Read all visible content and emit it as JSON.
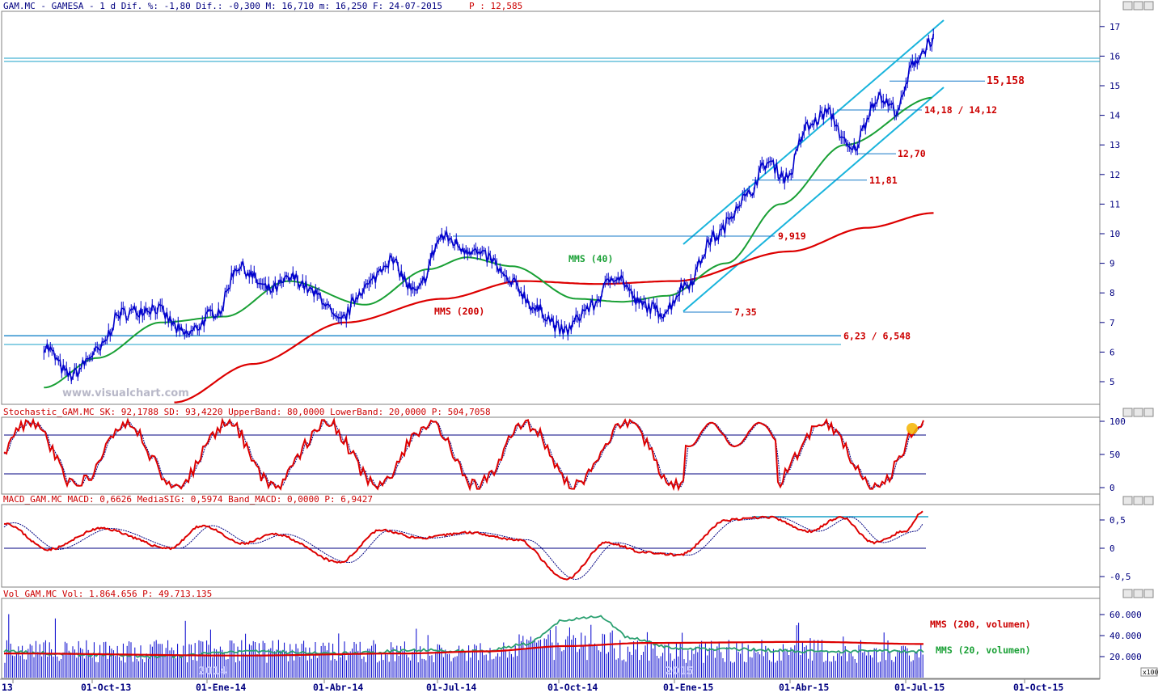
{
  "chart_data": {
    "type": "line",
    "title": "GAM.MC - GAMESA - 1 d Dif. %: -1,80 Dif.: -0,300 M: 16,710 m: 16,250 F: 24-07-2015",
    "header": {
      "text": "GAM.MC - GAMESA - 1 d Dif. %: -1,80 Dif.: -0,300 M: 16,710 m: 16,250 F: 24-07-2015",
      "p_label": "P : 12,585"
    },
    "price_panel": {
      "ylim": [
        4.3,
        17.5
      ],
      "yticks": [
        "17",
        "16",
        "15",
        "14",
        "13",
        "12",
        "11",
        "10",
        "9",
        "8",
        "7",
        "6",
        "5"
      ],
      "ytick_values": [
        17,
        16,
        15,
        14,
        13,
        12,
        11,
        10,
        9,
        8,
        7,
        6,
        5
      ],
      "close_series": [
        {
          "date": "2013-08-20",
          "value": 6.2
        },
        {
          "date": "2013-09-10",
          "value": 5.2
        },
        {
          "date": "2013-10-01",
          "value": 6.0
        },
        {
          "date": "2013-10-20",
          "value": 7.3
        },
        {
          "date": "2013-11-15",
          "value": 7.5
        },
        {
          "date": "2013-12-10",
          "value": 6.6
        },
        {
          "date": "2014-01-05",
          "value": 7.4
        },
        {
          "date": "2014-01-20",
          "value": 8.9
        },
        {
          "date": "2014-02-15",
          "value": 8.1
        },
        {
          "date": "2014-03-05",
          "value": 8.5
        },
        {
          "date": "2014-03-25",
          "value": 7.9
        },
        {
          "date": "2014-04-10",
          "value": 7.0
        },
        {
          "date": "2014-05-01",
          "value": 8.2
        },
        {
          "date": "2014-05-20",
          "value": 9.1
        },
        {
          "date": "2014-06-10",
          "value": 8.0
        },
        {
          "date": "2014-07-01",
          "value": 9.9
        },
        {
          "date": "2014-07-20",
          "value": 9.5
        },
        {
          "date": "2014-08-05",
          "value": 9.2
        },
        {
          "date": "2014-08-25",
          "value": 8.3
        },
        {
          "date": "2014-09-15",
          "value": 7.4
        },
        {
          "date": "2014-10-05",
          "value": 6.7
        },
        {
          "date": "2014-10-25",
          "value": 7.5
        },
        {
          "date": "2014-11-15",
          "value": 8.6
        },
        {
          "date": "2014-12-05",
          "value": 7.6
        },
        {
          "date": "2014-12-22",
          "value": 7.35
        },
        {
          "date": "2015-01-10",
          "value": 8.3
        },
        {
          "date": "2015-02-01",
          "value": 9.9
        },
        {
          "date": "2015-02-25",
          "value": 11.2
        },
        {
          "date": "2015-03-15",
          "value": 12.4
        },
        {
          "date": "2015-03-30",
          "value": 11.9
        },
        {
          "date": "2015-04-15",
          "value": 13.6
        },
        {
          "date": "2015-05-01",
          "value": 14.1
        },
        {
          "date": "2015-05-20",
          "value": 12.8
        },
        {
          "date": "2015-06-10",
          "value": 14.6
        },
        {
          "date": "2015-06-25",
          "value": 14.2
        },
        {
          "date": "2015-07-10",
          "value": 15.9
        },
        {
          "date": "2015-07-24",
          "value": 16.6
        }
      ],
      "mms40": [
        {
          "date": "2013-08-20",
          "value": 4.8
        },
        {
          "date": "2013-10-01",
          "value": 5.8
        },
        {
          "date": "2013-11-20",
          "value": 7.0
        },
        {
          "date": "2014-01-10",
          "value": 7.2
        },
        {
          "date": "2014-03-01",
          "value": 8.4
        },
        {
          "date": "2014-05-01",
          "value": 7.6
        },
        {
          "date": "2014-06-20",
          "value": 8.8
        },
        {
          "date": "2014-07-20",
          "value": 9.2
        },
        {
          "date": "2014-08-25",
          "value": 8.9
        },
        {
          "date": "2014-10-15",
          "value": 7.8
        },
        {
          "date": "2014-11-20",
          "value": 7.7
        },
        {
          "date": "2014-12-25",
          "value": 7.9
        },
        {
          "date": "2015-02-10",
          "value": 9.0
        },
        {
          "date": "2015-03-25",
          "value": 11.0
        },
        {
          "date": "2015-05-15",
          "value": 13.0
        },
        {
          "date": "2015-07-24",
          "value": 14.6
        }
      ],
      "mms200": [
        {
          "date": "2013-12-01",
          "value": 4.3
        },
        {
          "date": "2014-02-01",
          "value": 5.6
        },
        {
          "date": "2014-04-15",
          "value": 7.0
        },
        {
          "date": "2014-07-01",
          "value": 7.8
        },
        {
          "date": "2014-09-01",
          "value": 8.4
        },
        {
          "date": "2014-11-01",
          "value": 8.3
        },
        {
          "date": "2015-01-01",
          "value": 8.4
        },
        {
          "date": "2015-04-01",
          "value": 9.4
        },
        {
          "date": "2015-06-01",
          "value": 10.2
        },
        {
          "date": "2015-07-24",
          "value": 10.7
        }
      ],
      "mms40_label": "MMS (40)",
      "mms200_label": "MMS (200)",
      "levels": [
        {
          "label": "15,158",
          "value": 15.158
        },
        {
          "label": "14,18 / 14,12",
          "value": 14.18
        },
        {
          "label": "12,70",
          "value": 12.7
        },
        {
          "label": "11,81",
          "value": 11.81
        },
        {
          "label": "9,919",
          "value": 9.919
        },
        {
          "label": "7,35",
          "value": 7.35
        },
        {
          "label": "6,23 / 6,548",
          "value": 6.548
        }
      ],
      "watermark": "www.visualchart.com"
    },
    "stochastic_panel": {
      "header": "Stochastic_GAM.MC SK: 92,1788 SD: 93,4220 UpperBand: 80,0000 LowerBand: 20,0000 P: 504,7058",
      "yticks": [
        "100",
        "50",
        "0"
      ],
      "upper_band": 80,
      "lower_band": 20
    },
    "macd_panel": {
      "header": "MACD_GAM.MC MACD: 0,6626 MediaSIG: 0,5974 Band_MACD: 0,0000 P: 6,9427",
      "yticks": [
        "0,5",
        "0",
        "-0,5"
      ]
    },
    "volume_panel": {
      "header": "Vol_GAM.MC Vol: 1.864.656 P: 49.713.135",
      "yticks": [
        "60.000",
        "40.000",
        "20.000"
      ],
      "unit_label": "x100",
      "sma200_label": "MMS (200, volumen)",
      "sma20_label": "MMS (20, volumen)"
    },
    "x_axis": {
      "ticks": [
        "13",
        "01-Oct-13",
        "01-Ene-14",
        "01-Abr-14",
        "01-Jul-14",
        "01-Oct-14",
        "01-Ene-15",
        "01-Abr-15",
        "01-Jul-15",
        "01-Oct-15"
      ],
      "year_marks": [
        "2014",
        "2015"
      ]
    }
  }
}
